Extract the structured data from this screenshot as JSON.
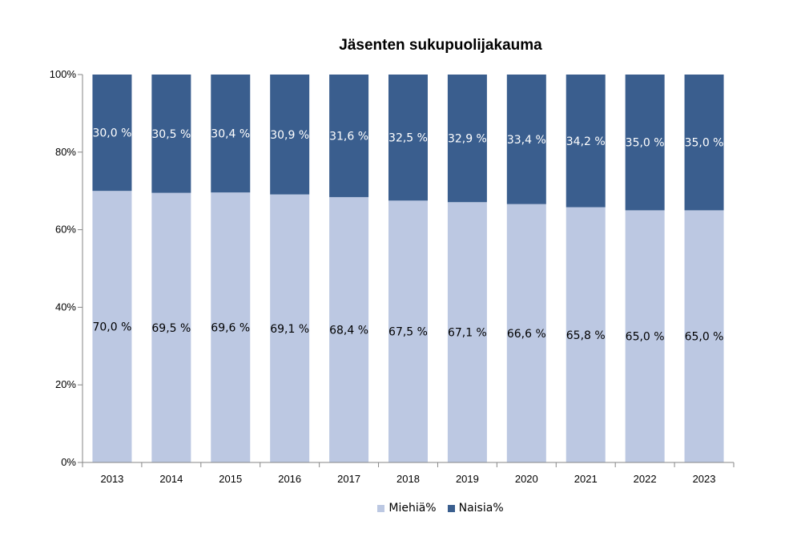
{
  "chart_data": {
    "type": "bar",
    "stacked": true,
    "title": "Jäsenten sukupuolijakauma",
    "categories": [
      "2013",
      "2014",
      "2015",
      "2016",
      "2017",
      "2018",
      "2019",
      "2020",
      "2021",
      "2022",
      "2023"
    ],
    "series": [
      {
        "name": "Miehiä%",
        "color": "#bcc8e2",
        "values": [
          70.0,
          69.5,
          69.6,
          69.1,
          68.4,
          67.5,
          67.1,
          66.6,
          65.8,
          65.0,
          65.0
        ],
        "labels": [
          "70,0 %",
          "69,5 %",
          "69,6 %",
          "69,1 %",
          "68,4 %",
          "67,5 %",
          "67,1 %",
          "66,6 %",
          "65,8 %",
          "65,0 %",
          "65,0 %"
        ],
        "label_color": "#000000"
      },
      {
        "name": "Naisia%",
        "color": "#3a5e8e",
        "values": [
          30.0,
          30.5,
          30.4,
          30.9,
          31.6,
          32.5,
          32.9,
          33.4,
          34.2,
          35.0,
          35.0
        ],
        "labels": [
          "30,0 %",
          "30,5 %",
          "30,4 %",
          "30,9 %",
          "31,6 %",
          "32,5 %",
          "32,9 %",
          "33,4 %",
          "34,2 %",
          "35,0 %",
          "35,0 %"
        ],
        "label_color": "#ffffff"
      }
    ],
    "ylim": [
      0,
      100
    ],
    "yticks": [
      "0%",
      "20%",
      "40%",
      "60%",
      "80%",
      "100%"
    ],
    "grid": false,
    "legend": "bottom"
  }
}
